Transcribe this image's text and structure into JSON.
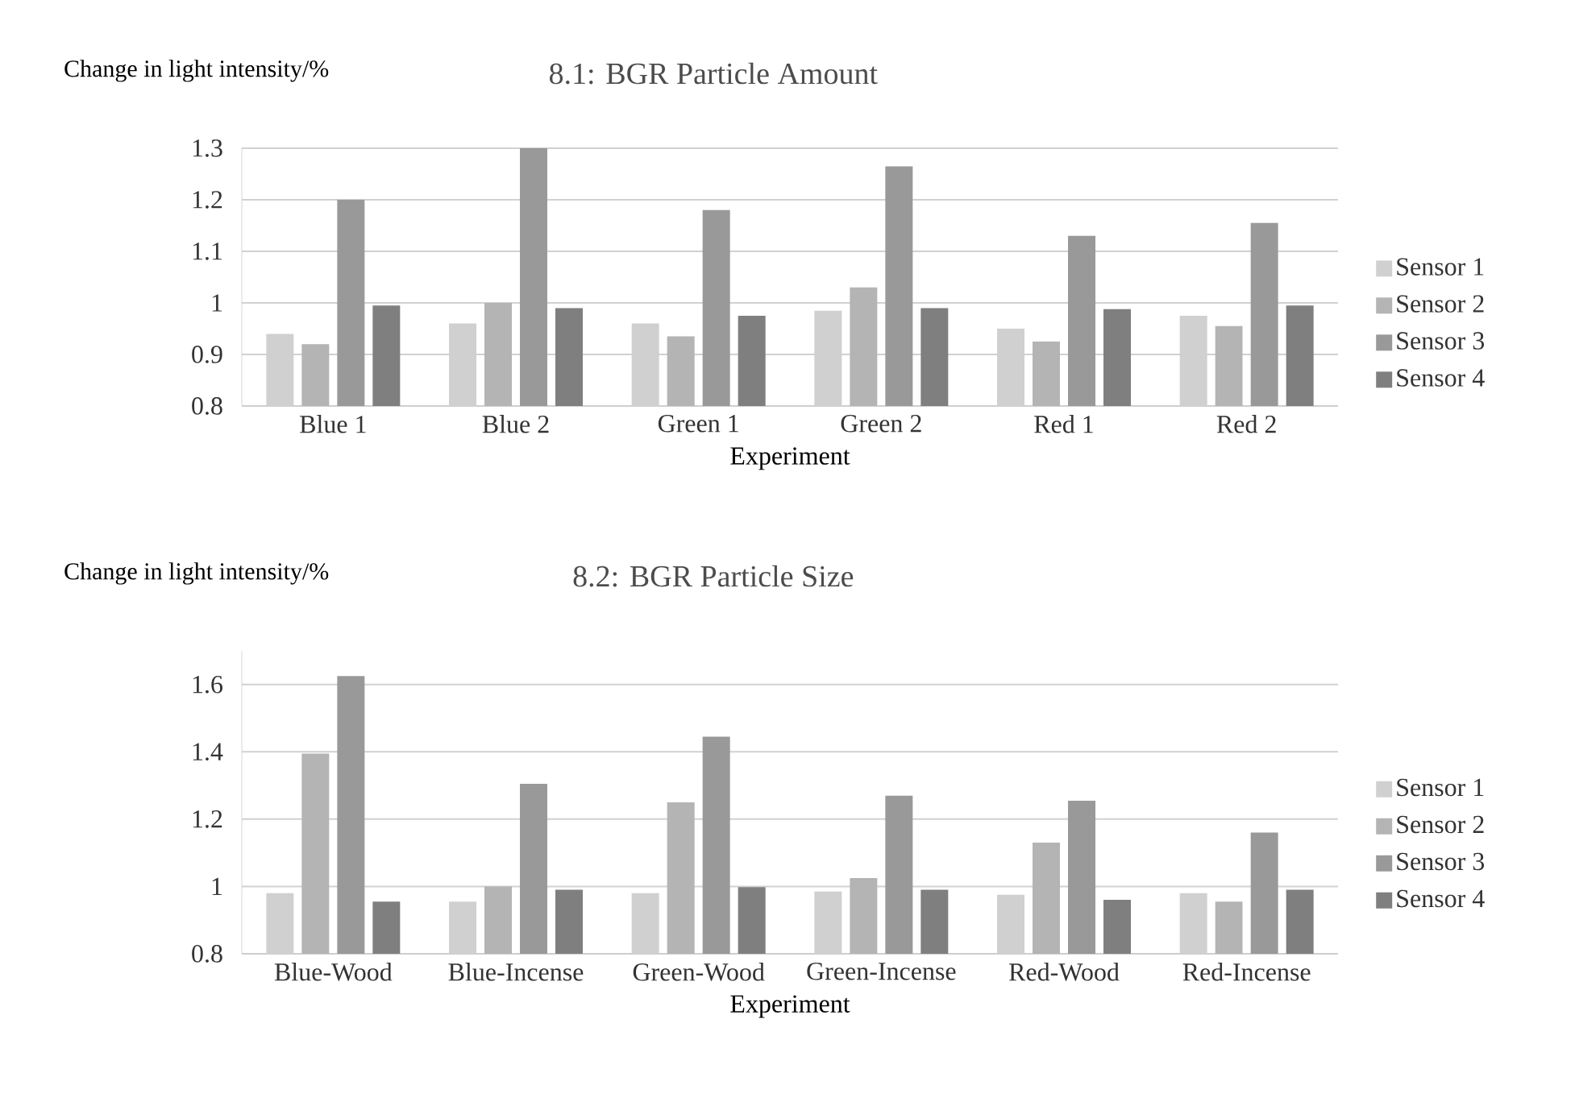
{
  "chart_data": [
    {
      "type": "bar",
      "title": "8.1: BGR Particle Amount",
      "xlabel": "Experiment",
      "ylabel": "Change in light intensity/%",
      "categories": [
        "Blue 1",
        "Blue 2",
        "Green 1",
        "Green 2",
        "Red 1",
        "Red 2"
      ],
      "series": [
        {
          "name": "Sensor 1",
          "color": "#d0d0d0",
          "values": [
            0.94,
            0.96,
            0.96,
            0.985,
            0.95,
            0.975
          ]
        },
        {
          "name": "Sensor 2",
          "color": "#b4b4b4",
          "values": [
            0.92,
            1.0,
            0.935,
            1.03,
            0.925,
            0.955
          ]
        },
        {
          "name": "Sensor 3",
          "color": "#999999",
          "values": [
            1.2,
            1.3,
            1.18,
            1.265,
            1.13,
            1.155
          ]
        },
        {
          "name": "Sensor 4",
          "color": "#7f7f7f",
          "values": [
            0.995,
            0.99,
            0.975,
            0.99,
            0.988,
            0.995
          ]
        }
      ],
      "ylim": [
        0.8,
        1.3
      ],
      "yticks": [
        0.8,
        0.9,
        1,
        1.1,
        1.2,
        1.3
      ],
      "grid": "y",
      "legend": "right"
    },
    {
      "type": "bar",
      "title": "8.2: BGR Particle Size",
      "xlabel": "Experiment",
      "ylabel": "Change in light intensity/%",
      "categories": [
        "Blue-Wood",
        "Blue-Incense",
        "Green-Wood",
        "Green-Incense",
        "Red-Wood",
        "Red-Incense"
      ],
      "series": [
        {
          "name": "Sensor 1",
          "color": "#d0d0d0",
          "values": [
            0.98,
            0.955,
            0.98,
            0.985,
            0.975,
            0.98
          ]
        },
        {
          "name": "Sensor 2",
          "color": "#b4b4b4",
          "values": [
            1.395,
            1.0,
            1.25,
            1.025,
            1.13,
            0.955
          ]
        },
        {
          "name": "Sensor 3",
          "color": "#999999",
          "values": [
            1.625,
            1.305,
            1.445,
            1.27,
            1.255,
            1.16
          ]
        },
        {
          "name": "Sensor 4",
          "color": "#7f7f7f",
          "values": [
            0.955,
            0.99,
            0.998,
            0.99,
            0.96,
            0.99
          ]
        }
      ],
      "ylim": [
        0.8,
        1.7
      ],
      "yticks": [
        0.8,
        1,
        1.2,
        1.4,
        1.6
      ],
      "grid": "y",
      "legend": "right"
    }
  ]
}
